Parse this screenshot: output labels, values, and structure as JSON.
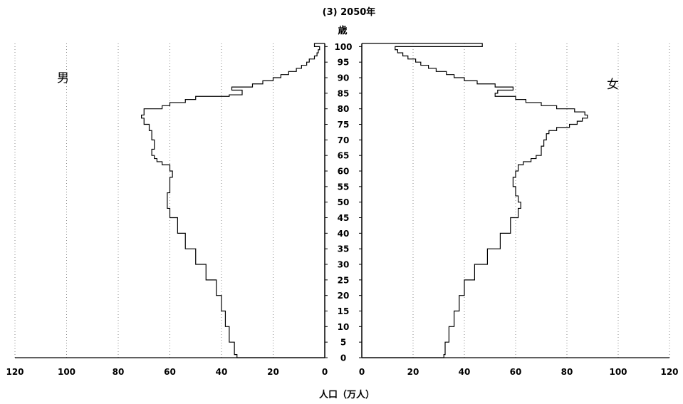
{
  "chart_data": {
    "type": "population-pyramid",
    "title": "(3)  2050年",
    "age_axis_label": "歳",
    "xlabel": "人口（万人）",
    "male_label": "男",
    "female_label": "女",
    "x_ticks": [
      0,
      20,
      40,
      60,
      80,
      100,
      120
    ],
    "xlim": [
      0,
      120
    ],
    "age_ticks": [
      0,
      5,
      10,
      15,
      20,
      25,
      30,
      35,
      40,
      45,
      50,
      55,
      60,
      65,
      70,
      75,
      80,
      85,
      90,
      95,
      100
    ],
    "ylim": [
      0,
      101
    ],
    "grid": "vertical dotted",
    "series": [
      {
        "name": "男",
        "side": "left",
        "points": [
          [
            0,
            34
          ],
          [
            1,
            35
          ],
          [
            5,
            37
          ],
          [
            10,
            38.5
          ],
          [
            15,
            40
          ],
          [
            20,
            42
          ],
          [
            25,
            46
          ],
          [
            30,
            50
          ],
          [
            35,
            54
          ],
          [
            40,
            57
          ],
          [
            45,
            60
          ],
          [
            48,
            61
          ],
          [
            50,
            61
          ],
          [
            53,
            60
          ],
          [
            56,
            60
          ],
          [
            58,
            59
          ],
          [
            60,
            60
          ],
          [
            62,
            63
          ],
          [
            63,
            65
          ],
          [
            64,
            66
          ],
          [
            65,
            67
          ],
          [
            67,
            66
          ],
          [
            70,
            67
          ],
          [
            73,
            68
          ],
          [
            75,
            70
          ],
          [
            77,
            71
          ],
          [
            78,
            70
          ],
          [
            80,
            63
          ],
          [
            81,
            60
          ],
          [
            82,
            54
          ],
          [
            83,
            50
          ],
          [
            84,
            37
          ],
          [
            84.5,
            32
          ],
          [
            85,
            32
          ],
          [
            86,
            36
          ],
          [
            87,
            28
          ],
          [
            88,
            24
          ],
          [
            89,
            20
          ],
          [
            90,
            17
          ],
          [
            91,
            14
          ],
          [
            92,
            11
          ],
          [
            93,
            9
          ],
          [
            94,
            7
          ],
          [
            95,
            6
          ],
          [
            96,
            4
          ],
          [
            97,
            3
          ],
          [
            98,
            2.5
          ],
          [
            99,
            2
          ],
          [
            100,
            4
          ],
          [
            101,
            0
          ]
        ]
      },
      {
        "name": "女",
        "side": "right",
        "points": [
          [
            0,
            32
          ],
          [
            1,
            32.5
          ],
          [
            5,
            34
          ],
          [
            10,
            36
          ],
          [
            15,
            38
          ],
          [
            20,
            40
          ],
          [
            25,
            44
          ],
          [
            30,
            49
          ],
          [
            35,
            54
          ],
          [
            40,
            58
          ],
          [
            45,
            61
          ],
          [
            48,
            62
          ],
          [
            50,
            61
          ],
          [
            52,
            60
          ],
          [
            55,
            59
          ],
          [
            58,
            60
          ],
          [
            60,
            61
          ],
          [
            62,
            63
          ],
          [
            63,
            66
          ],
          [
            64,
            68
          ],
          [
            65,
            70
          ],
          [
            68,
            71
          ],
          [
            70,
            72
          ],
          [
            72,
            73
          ],
          [
            73,
            76
          ],
          [
            74,
            81
          ],
          [
            75,
            84
          ],
          [
            76,
            86
          ],
          [
            77,
            88
          ],
          [
            78,
            87
          ],
          [
            79,
            83
          ],
          [
            80,
            76
          ],
          [
            81,
            70
          ],
          [
            82,
            64
          ],
          [
            83,
            60
          ],
          [
            84,
            52
          ],
          [
            85,
            53
          ],
          [
            86,
            59
          ],
          [
            87,
            52
          ],
          [
            88,
            45
          ],
          [
            89,
            40
          ],
          [
            90,
            36
          ],
          [
            91,
            33
          ],
          [
            92,
            29
          ],
          [
            93,
            26
          ],
          [
            94,
            23
          ],
          [
            95,
            21
          ],
          [
            96,
            18
          ],
          [
            97,
            16
          ],
          [
            98,
            14
          ],
          [
            99,
            13
          ],
          [
            100,
            47
          ],
          [
            101,
            0
          ]
        ]
      }
    ]
  }
}
